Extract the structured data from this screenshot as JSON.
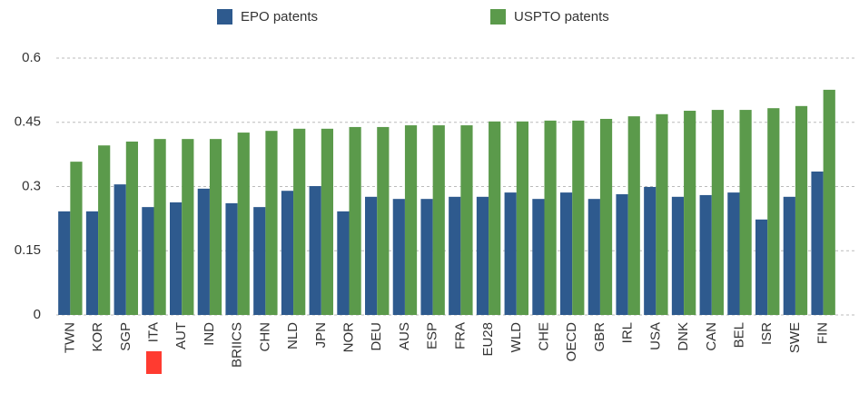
{
  "chart_data": {
    "type": "bar",
    "categories": [
      "TWN",
      "KOR",
      "SGP",
      "ITA",
      "AUT",
      "IND",
      "BRIICS",
      "CHN",
      "NLD",
      "JPN",
      "NOR",
      "DEU",
      "AUS",
      "ESP",
      "FRA",
      "EU28",
      "WLD",
      "CHE",
      "OECD",
      "GBR",
      "IRL",
      "USA",
      "DNK",
      "CAN",
      "BEL",
      "ISR",
      "SWE",
      "FIN"
    ],
    "series": [
      {
        "name": "EPO patents",
        "color": "#2e5a8e",
        "values": [
          0.242,
          0.242,
          0.305,
          0.252,
          0.263,
          0.295,
          0.261,
          0.252,
          0.29,
          0.301,
          0.242,
          0.276,
          0.271,
          0.271,
          0.276,
          0.276,
          0.286,
          0.271,
          0.286,
          0.271,
          0.282,
          0.299,
          0.276,
          0.28,
          0.286,
          0.223,
          0.276,
          0.335
        ]
      },
      {
        "name": "USPTO patents",
        "color": "#5b9a4b",
        "values": [
          0.358,
          0.396,
          0.405,
          0.411,
          0.411,
          0.411,
          0.426,
          0.43,
          0.435,
          0.435,
          0.439,
          0.439,
          0.443,
          0.443,
          0.443,
          0.452,
          0.452,
          0.454,
          0.454,
          0.458,
          0.464,
          0.469,
          0.477,
          0.479,
          0.479,
          0.483,
          0.488,
          0.526
        ]
      }
    ],
    "ylim": [
      0,
      0.6
    ],
    "yticks": [
      0,
      0.15,
      0.3,
      0.45,
      0.6
    ],
    "grid": true
  }
}
